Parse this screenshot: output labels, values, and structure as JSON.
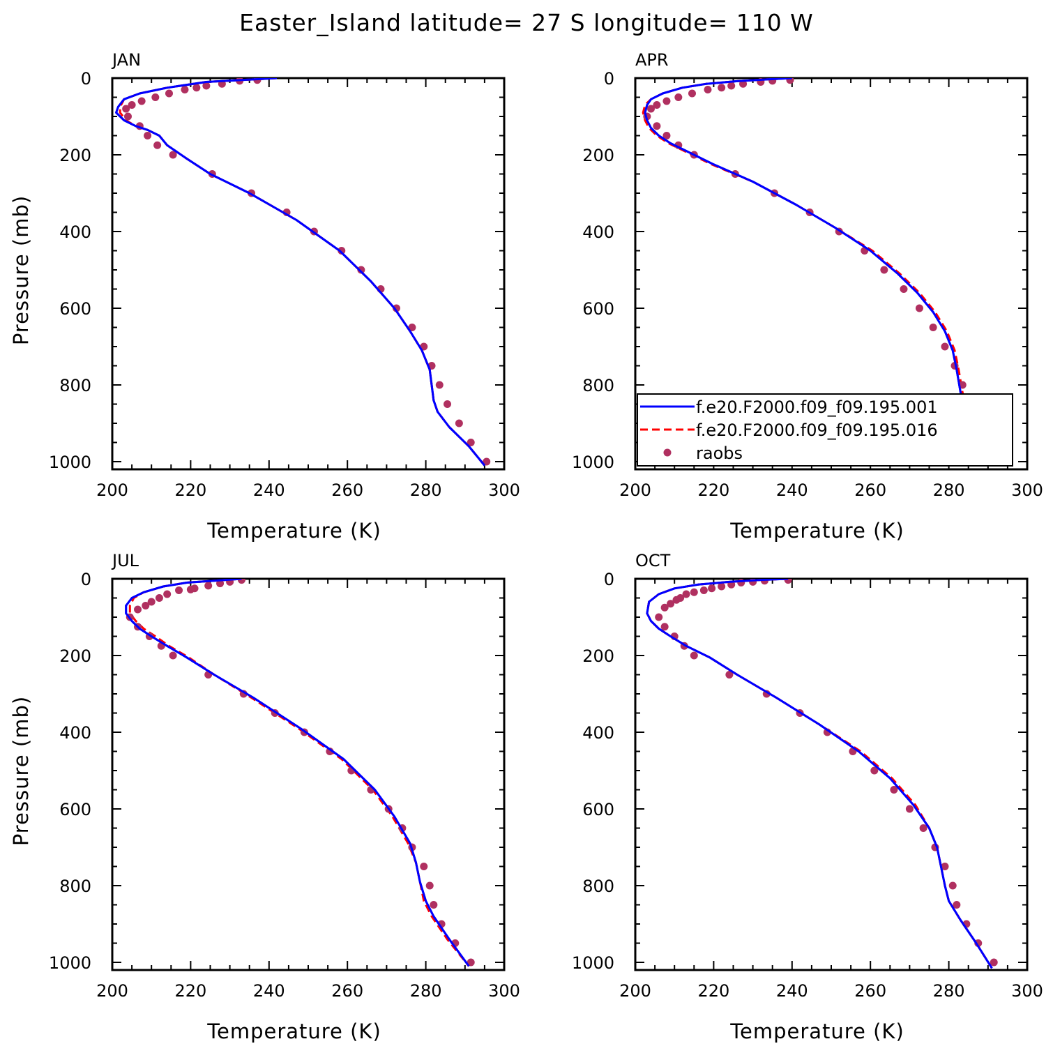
{
  "title": "Easter_Island  latitude= 27 S longitude= 110 W",
  "colors": {
    "model_001": "#0000ff",
    "model_016": "#ff0000",
    "raobs": "#b03060"
  },
  "chart_data": [
    {
      "type": "line",
      "panel": "JAN",
      "xlabel": "Temperature (K)",
      "ylabel": "Pressure (mb)",
      "xlim": [
        200,
        300
      ],
      "ylim": [
        1020,
        0
      ],
      "xticks": [
        200,
        220,
        240,
        260,
        280,
        300
      ],
      "yticks": [
        0,
        200,
        400,
        600,
        800,
        1000
      ],
      "series": [
        {
          "name": "f.e20.F2000.f09_f09.195.001",
          "style": "solid",
          "color": "#0000ff",
          "x": [
            242,
            233,
            224,
            214,
            207,
            203,
            201.5,
            201,
            203,
            206,
            209,
            212,
            214,
            219,
            225,
            235,
            247,
            258,
            266,
            272,
            276,
            279,
            281,
            281.5,
            282,
            283,
            286,
            291,
            295
          ],
          "y": [
            0,
            5,
            10,
            25,
            40,
            55,
            75,
            90,
            110,
            125,
            135,
            150,
            175,
            210,
            250,
            300,
            370,
            450,
            530,
            600,
            660,
            710,
            760,
            800,
            840,
            870,
            910,
            960,
            1010
          ]
        },
        {
          "name": "f.e20.F2000.f09_f09.195.016",
          "style": "dashed",
          "color": "#ff0000",
          "x": [
            242,
            233,
            224,
            214,
            207,
            203,
            202,
            202,
            203.5,
            206,
            209,
            212,
            214,
            219,
            225,
            235,
            247,
            258,
            266,
            272,
            276,
            279,
            281,
            281.5,
            282,
            283,
            286,
            291,
            295
          ],
          "y": [
            0,
            5,
            10,
            25,
            40,
            55,
            75,
            90,
            110,
            125,
            135,
            150,
            175,
            210,
            250,
            300,
            370,
            450,
            530,
            600,
            660,
            710,
            760,
            800,
            840,
            870,
            910,
            960,
            1010
          ]
        },
        {
          "name": "raobs",
          "style": "markers",
          "color": "#b03060",
          "x": [
            237,
            232.5,
            228,
            224,
            221.5,
            218.5,
            214.5,
            211,
            207.5,
            205,
            203.5,
            204,
            207,
            209,
            211.5,
            215.5,
            225.5,
            235.5,
            244.5,
            251.5,
            258.5,
            263.5,
            268.5,
            272.5,
            276.5,
            279.5,
            281.5,
            283.5,
            285.5,
            288.5,
            291.5,
            295.5
          ],
          "y": [
            5,
            7,
            15,
            20,
            25,
            30,
            40,
            50,
            60,
            70,
            80,
            100,
            125,
            150,
            175,
            200,
            250,
            300,
            350,
            400,
            450,
            500,
            550,
            600,
            650,
            700,
            750,
            800,
            850,
            900,
            950,
            1000
          ]
        }
      ]
    },
    {
      "type": "line",
      "panel": "APR",
      "xlabel": "Temperature (K)",
      "ylabel": "",
      "xlim": [
        200,
        300
      ],
      "ylim": [
        1020,
        0
      ],
      "xticks": [
        200,
        220,
        240,
        260,
        280,
        300
      ],
      "yticks": [
        0,
        200,
        400,
        600,
        800,
        1000
      ],
      "legend": {
        "location": "lower-right",
        "entries": [
          "f.e20.F2000.f09_f09.195.001",
          "f.e20.F2000.f09_f09.195.016",
          "raobs"
        ]
      },
      "series": [
        {
          "name": "f.e20.F2000.f09_f09.195.001",
          "style": "solid",
          "color": "#0000ff",
          "x": [
            240,
            234,
            226,
            218,
            212,
            207,
            204,
            203,
            202.5,
            203,
            204,
            206,
            209,
            213,
            220,
            230,
            241,
            251,
            260,
            267,
            272,
            276,
            279,
            281,
            282,
            283,
            285,
            290,
            295
          ],
          "y": [
            0,
            3,
            8,
            15,
            25,
            40,
            55,
            70,
            90,
            110,
            130,
            150,
            170,
            190,
            225,
            270,
            330,
            390,
            450,
            510,
            560,
            610,
            660,
            710,
            760,
            820,
            880,
            950,
            1010
          ]
        },
        {
          "name": "f.e20.F2000.f09_f09.195.016",
          "style": "dashed",
          "color": "#ff0000",
          "x": [
            240,
            234,
            226,
            218,
            212,
            207,
            204,
            202.5,
            202,
            202.5,
            203.5,
            205.5,
            208.5,
            212.5,
            219.5,
            230,
            241,
            251,
            260.5,
            267.5,
            272.5,
            276.5,
            279.5,
            281.5,
            282.5,
            283.5,
            285.5,
            290.5,
            295
          ],
          "y": [
            0,
            3,
            8,
            15,
            25,
            40,
            55,
            70,
            90,
            110,
            130,
            150,
            170,
            190,
            225,
            270,
            330,
            390,
            450,
            510,
            560,
            610,
            660,
            710,
            760,
            820,
            880,
            950,
            1010
          ]
        },
        {
          "name": "raobs",
          "style": "markers",
          "color": "#b03060",
          "x": [
            239.5,
            235,
            232,
            227.5,
            224.5,
            222,
            218.5,
            214.5,
            211,
            208,
            205.5,
            204,
            203,
            205.5,
            208,
            211,
            215,
            225.5,
            235.5,
            244.5,
            252,
            258.5,
            263.5,
            268.5,
            272.5,
            276,
            279,
            281.5,
            283.5,
            285.5,
            288,
            291.5,
            295
          ],
          "y": [
            5,
            7,
            10,
            15,
            20,
            25,
            30,
            40,
            50,
            60,
            70,
            80,
            100,
            125,
            150,
            175,
            200,
            250,
            300,
            350,
            400,
            450,
            500,
            550,
            600,
            650,
            700,
            750,
            800,
            850,
            900,
            950,
            1000
          ]
        }
      ]
    },
    {
      "type": "line",
      "panel": "JUL",
      "xlabel": "Temperature (K)",
      "ylabel": "Pressure (mb)",
      "xlim": [
        200,
        300
      ],
      "ylim": [
        1020,
        0
      ],
      "xticks": [
        200,
        220,
        240,
        260,
        280,
        300
      ],
      "yticks": [
        0,
        200,
        400,
        600,
        800,
        1000
      ],
      "series": [
        {
          "name": "f.e20.F2000.f09_f09.195.001",
          "style": "solid",
          "color": "#0000ff",
          "x": [
            233,
            226,
            219,
            213,
            208,
            205,
            203.5,
            203.5,
            205,
            207,
            210,
            214,
            219,
            226,
            236,
            248,
            259,
            267,
            272,
            276,
            277.5,
            278.5,
            280,
            282,
            286,
            291
          ],
          "y": [
            0,
            5,
            10,
            20,
            35,
            50,
            70,
            90,
            110,
            130,
            150,
            175,
            205,
            250,
            310,
            390,
            470,
            550,
            620,
            690,
            740,
            790,
            840,
            880,
            940,
            1010
          ]
        },
        {
          "name": "f.e20.F2000.f09_f09.195.016",
          "style": "dashed",
          "color": "#ff0000",
          "x": [
            233,
            226,
            219,
            213,
            208,
            205.5,
            204.5,
            204.5,
            206,
            208,
            211,
            214.5,
            219.5,
            226,
            235.5,
            247.5,
            258.5,
            266.5,
            271.5,
            275.5,
            277.5,
            278.5,
            279.5,
            281.5,
            285.5,
            291
          ],
          "y": [
            0,
            5,
            10,
            20,
            35,
            50,
            70,
            90,
            110,
            130,
            150,
            175,
            205,
            250,
            310,
            390,
            470,
            550,
            620,
            690,
            740,
            790,
            840,
            880,
            940,
            1010
          ]
        },
        {
          "name": "raobs",
          "style": "markers",
          "color": "#b03060",
          "x": [
            233,
            230,
            227.5,
            224.5,
            221,
            220,
            217,
            214,
            212,
            210,
            208.5,
            206.5,
            204.5,
            206.5,
            209.5,
            212.5,
            215.5,
            224.5,
            233.5,
            241.5,
            249,
            255.5,
            261,
            266,
            270.5,
            274,
            276.5,
            279.5,
            281,
            282,
            284,
            287.5,
            291.5
          ],
          "y": [
            3,
            8,
            12,
            18,
            25,
            28,
            30,
            40,
            50,
            60,
            70,
            80,
            100,
            125,
            150,
            175,
            200,
            250,
            300,
            350,
            400,
            450,
            500,
            550,
            600,
            650,
            700,
            750,
            800,
            850,
            900,
            950,
            1000
          ]
        }
      ]
    },
    {
      "type": "line",
      "panel": "OCT",
      "xlabel": "Temperature (K)",
      "ylabel": "",
      "xlim": [
        200,
        300
      ],
      "ylim": [
        1020,
        0
      ],
      "xticks": [
        200,
        220,
        240,
        260,
        280,
        300
      ],
      "yticks": [
        0,
        200,
        400,
        600,
        800,
        1000
      ],
      "series": [
        {
          "name": "f.e20.F2000.f09_f09.195.001",
          "style": "solid",
          "color": "#0000ff",
          "x": [
            239,
            232,
            224,
            216,
            210,
            206,
            203.5,
            203,
            204,
            206,
            209,
            213,
            219,
            226,
            236,
            247,
            257,
            265,
            271,
            275,
            277,
            278,
            279,
            280,
            283,
            287,
            291
          ],
          "y": [
            0,
            3,
            8,
            15,
            25,
            40,
            60,
            90,
            110,
            130,
            150,
            175,
            205,
            250,
            310,
            380,
            450,
            520,
            590,
            650,
            700,
            750,
            800,
            840,
            890,
            950,
            1015
          ]
        },
        {
          "name": "f.e20.F2000.f09_f09.195.016",
          "style": "dashed",
          "color": "#ff0000",
          "x": [
            239,
            232,
            224,
            216,
            210,
            206,
            203.5,
            203,
            204,
            206,
            209,
            213,
            219,
            226,
            236,
            247,
            257.5,
            265.5,
            271.5,
            275,
            277,
            278,
            279,
            280,
            283,
            287,
            291
          ],
          "y": [
            0,
            3,
            8,
            15,
            25,
            40,
            60,
            90,
            110,
            130,
            150,
            175,
            205,
            250,
            310,
            380,
            450,
            520,
            590,
            650,
            700,
            750,
            800,
            840,
            890,
            950,
            1015
          ]
        },
        {
          "name": "raobs",
          "style": "markers",
          "color": "#b03060",
          "x": [
            239,
            233,
            230,
            227,
            224.5,
            222,
            219.5,
            217.5,
            215,
            213,
            211.5,
            210.5,
            209,
            207.5,
            206,
            207.5,
            210,
            212.5,
            215,
            224,
            233.5,
            242,
            249,
            255.5,
            261,
            266,
            270,
            273.5,
            276.5,
            279,
            281,
            282,
            284.5,
            287.5,
            291.5
          ],
          "y": [
            3,
            5,
            8,
            10,
            15,
            20,
            25,
            30,
            35,
            40,
            50,
            55,
            65,
            75,
            100,
            125,
            150,
            175,
            200,
            250,
            300,
            350,
            400,
            450,
            500,
            550,
            600,
            650,
            700,
            750,
            800,
            850,
            900,
            950,
            1000
          ]
        }
      ]
    }
  ]
}
